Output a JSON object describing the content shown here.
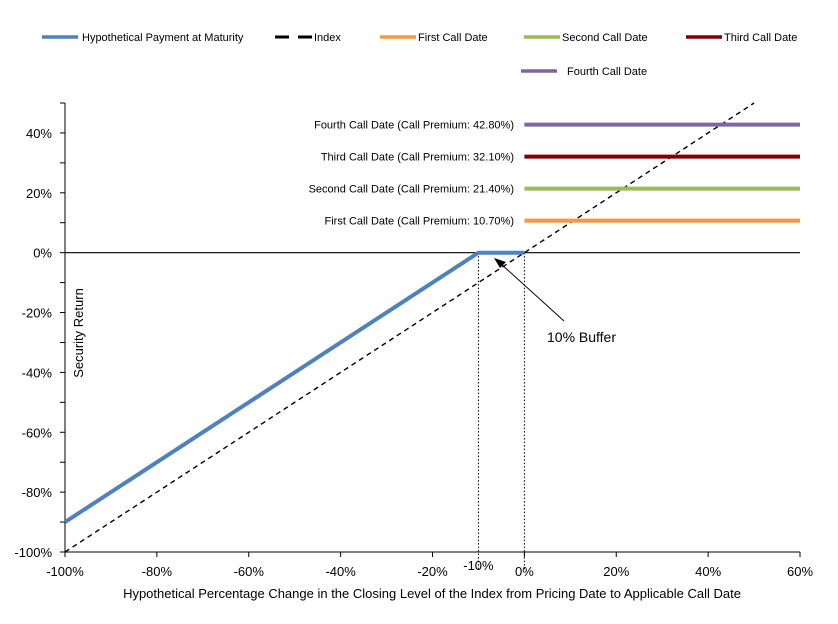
{
  "chart_data": {
    "type": "line",
    "title": "",
    "xlabel": "Hypothetical Percentage Change in the Closing Level of the Index from Pricing Date to Applicable Call Date",
    "ylabel": "Security Return",
    "xlim": [
      -100,
      60
    ],
    "ylim": [
      -100,
      50
    ],
    "x_ticks": [
      "-100%",
      "-80%",
      "-60%",
      "-40%",
      "-20%",
      "0%",
      "20%",
      "40%",
      "60%"
    ],
    "x_tick_extra": "-10%",
    "y_ticks": [
      "40%",
      "20%",
      "0%",
      "-20%",
      "-40%",
      "-60%",
      "-80%",
      "-100%"
    ],
    "grid": false,
    "legend_position": "top",
    "legend": [
      {
        "name": "Hypothetical Payment at Maturity",
        "color": "#4f81bd",
        "style": "solid"
      },
      {
        "name": "Index",
        "color": "#000000",
        "style": "dashed"
      },
      {
        "name": "First Call Date",
        "color": "#f79646",
        "style": "solid"
      },
      {
        "name": "Second Call Date",
        "color": "#9bbb59",
        "style": "solid"
      },
      {
        "name": "Third Call Date",
        "color": "#7f0000",
        "style": "solid"
      },
      {
        "name": "Fourth Call Date",
        "color": "#8064a2",
        "style": "solid"
      }
    ],
    "series": [
      {
        "name": "Hypothetical Payment at Maturity",
        "x": [
          -100,
          -10,
          0
        ],
        "y": [
          -90,
          0,
          0
        ]
      },
      {
        "name": "Index",
        "x": [
          -100,
          50
        ],
        "y": [
          -100,
          50
        ]
      },
      {
        "name": "First Call Date",
        "x": [
          0,
          60
        ],
        "y": [
          10.7,
          10.7
        ]
      },
      {
        "name": "Second Call Date",
        "x": [
          0,
          60
        ],
        "y": [
          21.4,
          21.4
        ]
      },
      {
        "name": "Third Call Date",
        "x": [
          0,
          60
        ],
        "y": [
          32.1,
          32.1
        ]
      },
      {
        "name": "Fourth Call Date",
        "x": [
          0,
          60
        ],
        "y": [
          42.8,
          42.8
        ]
      }
    ],
    "annotations": [
      {
        "text": "Fourth Call Date (Call Premium: 42.80%)",
        "y": 42.8
      },
      {
        "text": "Third Call Date (Call Premium: 32.10%)",
        "y": 32.1
      },
      {
        "text": "Second Call Date (Call Premium: 21.40%)",
        "y": 21.4
      },
      {
        "text": "First Call Date (Call Premium: 10.70%)",
        "y": 10.7
      }
    ],
    "buffer_label": "10% Buffer",
    "reference_lines_x": [
      -10,
      0
    ]
  }
}
